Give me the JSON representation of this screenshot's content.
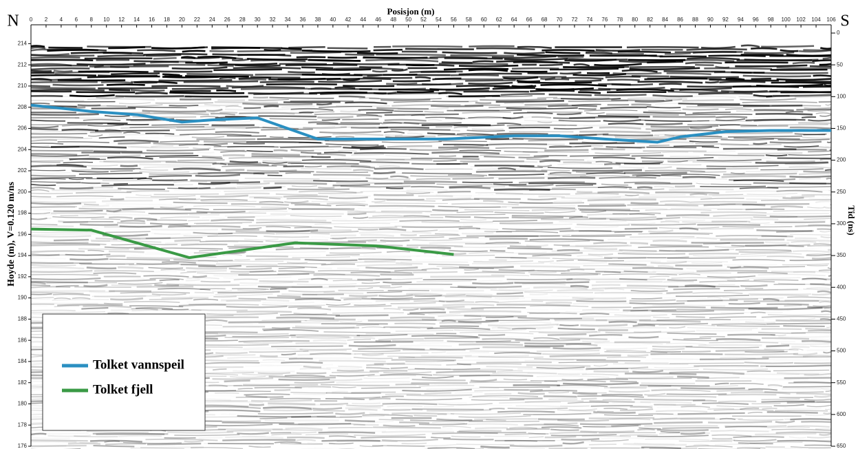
{
  "chart_data": {
    "type": "line",
    "x_label": "Posisjon (m)",
    "y_label": "Hoyde (m), V=0.120 m/ns",
    "y2_label": "Tid (ns)",
    "start_label": "N",
    "end_label": "S",
    "xlim": [
      0,
      106
    ],
    "xticks": [
      0,
      2,
      4,
      6,
      8,
      10,
      12,
      14,
      16,
      18,
      20,
      22,
      24,
      26,
      28,
      30,
      32,
      34,
      36,
      38,
      40,
      42,
      44,
      46,
      48,
      50,
      52,
      54,
      56,
      58,
      60,
      62,
      64,
      66,
      68,
      70,
      72,
      74,
      76,
      78,
      80,
      82,
      84,
      86,
      88,
      90,
      92,
      94,
      96,
      98,
      100,
      102,
      104,
      106
    ],
    "ylim": [
      176,
      215
    ],
    "yticks": [
      176,
      178,
      180,
      182,
      184,
      186,
      188,
      190,
      192,
      194,
      196,
      198,
      200,
      202,
      204,
      206,
      208,
      210,
      212,
      214
    ],
    "y2lim": [
      0,
      650
    ],
    "y2ticks": [
      0,
      50,
      100,
      150,
      200,
      250,
      300,
      350,
      400,
      450,
      500,
      550,
      600,
      650
    ],
    "legend": "lower left",
    "series": [
      {
        "name": "Tolket vannspeil",
        "color": "#2a8fc1",
        "x": [
          0,
          8,
          14,
          20,
          24,
          30,
          34,
          38,
          45,
          55,
          64,
          70,
          76,
          83,
          86,
          92,
          98,
          106
        ],
        "values": [
          208.2,
          207.6,
          207.3,
          206.6,
          206.8,
          207.0,
          206.0,
          205.0,
          205.0,
          205.0,
          205.3,
          205.3,
          205.0,
          204.7,
          205.2,
          205.7,
          205.8,
          205.8
        ]
      },
      {
        "name": "Tolket fjell",
        "color": "#3a9a45",
        "x": [
          0,
          8,
          21,
          35,
          46,
          56
        ],
        "values": [
          196.5,
          196.4,
          193.8,
          195.2,
          194.9,
          194.1
        ]
      }
    ]
  }
}
